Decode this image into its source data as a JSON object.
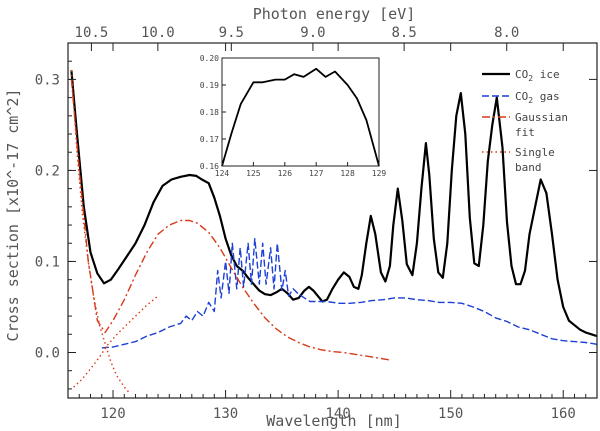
{
  "chart_data": {
    "type": "line",
    "xlabel": "Wavelength [nm]",
    "x2label": "Photon energy [eV]",
    "ylabel": "Cross section [x10^-17 cm^2]",
    "xlim": [
      116,
      163
    ],
    "ylim": [
      -0.05,
      0.34
    ],
    "x_ticks": [
      120,
      130,
      140,
      150,
      160
    ],
    "y_ticks": [
      0.0,
      0.1,
      0.2,
      0.3
    ],
    "x2_ticks": [
      10.5,
      10.0,
      9.5,
      9.0,
      8.5,
      8.0
    ],
    "legend_position": "top-right",
    "legend": [
      "CO2 ice",
      "CO2 gas",
      "Gaussian fit",
      "Single band"
    ],
    "series": [
      {
        "name": "CO2 ice",
        "color": "#000000",
        "style": "solid",
        "x": [
          116.3,
          116.8,
          117.4,
          118.0,
          118.6,
          119.2,
          119.8,
          120.5,
          121.2,
          122.0,
          122.8,
          123.6,
          124.4,
          125.2,
          126.0,
          126.8,
          127.4,
          127.9,
          128.5,
          129.0,
          129.5,
          130.0,
          130.5,
          131.0,
          131.5,
          132.0,
          132.5,
          133.0,
          133.5,
          134.0,
          134.5,
          135.0,
          135.5,
          136.0,
          136.5,
          137.0,
          137.4,
          137.8,
          138.2,
          138.6,
          139.0,
          139.5,
          140.0,
          140.5,
          141.0,
          141.4,
          141.8,
          142.1,
          142.5,
          142.9,
          143.3,
          143.8,
          144.2,
          144.6,
          144.9,
          145.3,
          145.7,
          146.1,
          146.6,
          147.0,
          147.4,
          147.8,
          148.1,
          148.5,
          148.9,
          149.3,
          149.7,
          150.1,
          150.5,
          150.9,
          151.3,
          151.7,
          152.1,
          152.5,
          152.9,
          153.3,
          153.7,
          154.1,
          154.6,
          155.0,
          155.4,
          155.8,
          156.2,
          156.6,
          157.0,
          157.5,
          158.0,
          158.5,
          159.0,
          159.5,
          160.0,
          160.5,
          161.0,
          161.5,
          162.0,
          162.5,
          163.0
        ],
        "y": [
          0.31,
          0.24,
          0.16,
          0.11,
          0.087,
          0.076,
          0.08,
          0.092,
          0.105,
          0.12,
          0.14,
          0.165,
          0.183,
          0.19,
          0.193,
          0.195,
          0.194,
          0.19,
          0.186,
          0.17,
          0.15,
          0.125,
          0.107,
          0.095,
          0.09,
          0.082,
          0.075,
          0.068,
          0.064,
          0.063,
          0.066,
          0.07,
          0.065,
          0.058,
          0.06,
          0.068,
          0.072,
          0.068,
          0.062,
          0.056,
          0.058,
          0.07,
          0.08,
          0.088,
          0.083,
          0.072,
          0.07,
          0.085,
          0.12,
          0.15,
          0.13,
          0.088,
          0.078,
          0.095,
          0.14,
          0.18,
          0.145,
          0.097,
          0.085,
          0.12,
          0.18,
          0.23,
          0.195,
          0.125,
          0.088,
          0.082,
          0.12,
          0.2,
          0.26,
          0.285,
          0.24,
          0.148,
          0.098,
          0.095,
          0.14,
          0.21,
          0.25,
          0.28,
          0.225,
          0.143,
          0.095,
          0.075,
          0.075,
          0.09,
          0.13,
          0.16,
          0.19,
          0.175,
          0.13,
          0.08,
          0.05,
          0.035,
          0.03,
          0.025,
          0.022,
          0.02,
          0.018
        ]
      },
      {
        "name": "CO2 gas",
        "color": "#1c3fd6",
        "style": "dashed",
        "x": [
          119.0,
          120.0,
          121.0,
          122.0,
          123.0,
          124.0,
          125.0,
          126.0,
          126.5,
          127.0,
          127.5,
          128.0,
          128.5,
          129.0,
          129.3,
          129.6,
          130.0,
          130.3,
          130.6,
          131.0,
          131.3,
          131.6,
          132.0,
          132.3,
          132.6,
          133.0,
          133.3,
          133.6,
          134.0,
          134.3,
          134.6,
          135.0,
          135.3,
          135.6,
          136.0,
          136.5,
          137.0,
          137.5,
          138.0,
          139.0,
          140.0,
          141.0,
          142.0,
          143.0,
          144.0,
          145.0,
          146.0,
          147.0,
          148.0,
          149.0,
          150.0,
          151.0,
          152.0,
          153.0,
          154.0,
          155.0,
          156.0,
          157.0,
          158.0,
          159.0,
          160.0,
          161.0,
          162.0,
          163.0
        ],
        "y": [
          0.005,
          0.006,
          0.009,
          0.012,
          0.018,
          0.022,
          0.028,
          0.032,
          0.04,
          0.035,
          0.045,
          0.04,
          0.055,
          0.045,
          0.09,
          0.06,
          0.1,
          0.065,
          0.12,
          0.07,
          0.115,
          0.072,
          0.12,
          0.075,
          0.125,
          0.075,
          0.12,
          0.075,
          0.115,
          0.07,
          0.12,
          0.068,
          0.09,
          0.062,
          0.07,
          0.064,
          0.06,
          0.056,
          0.056,
          0.056,
          0.054,
          0.054,
          0.055,
          0.057,
          0.058,
          0.06,
          0.06,
          0.058,
          0.057,
          0.055,
          0.055,
          0.054,
          0.05,
          0.045,
          0.038,
          0.034,
          0.028,
          0.025,
          0.02,
          0.015,
          0.013,
          0.012,
          0.011,
          0.009
        ]
      },
      {
        "name": "Gaussian fit",
        "color": "#d83a1a",
        "style": "dash-dot",
        "x": [
          116.3,
          117.0,
          117.8,
          118.6,
          119.3,
          120.0,
          121.0,
          122.0,
          123.0,
          124.0,
          125.0,
          126.0,
          126.8,
          127.5,
          128.5,
          129.5,
          130.5,
          131.5,
          132.5,
          133.5,
          134.5,
          135.5,
          136.5,
          137.5,
          138.5,
          139.5,
          140.5,
          141.5,
          142.5,
          143.5,
          144.5
        ],
        "y": [
          0.3,
          0.2,
          0.1,
          0.035,
          0.022,
          0.035,
          0.058,
          0.085,
          0.11,
          0.13,
          0.14,
          0.145,
          0.145,
          0.142,
          0.132,
          0.115,
          0.093,
          0.072,
          0.054,
          0.038,
          0.026,
          0.017,
          0.011,
          0.006,
          0.003,
          0.001,
          0.0,
          -0.002,
          -0.004,
          -0.006,
          -0.008
        ]
      },
      {
        "name": "Single band",
        "color": "#d83a1a",
        "style": "dotted",
        "x": [
          116.3,
          116.8,
          117.3,
          117.8,
          118.3,
          118.8,
          119.3,
          119.8,
          120.3,
          121.0,
          121.5,
          116.5,
          117.2,
          118.0,
          118.8,
          119.5,
          120.2,
          121.0,
          122.0,
          123.0,
          124.0
        ],
        "y": [
          0.31,
          0.22,
          0.15,
          0.1,
          0.06,
          0.03,
          0.01,
          -0.01,
          -0.025,
          -0.038,
          -0.045,
          -0.038,
          -0.03,
          -0.018,
          -0.005,
          0.008,
          0.018,
          0.028,
          0.04,
          0.052,
          0.062
        ]
      }
    ],
    "inset": {
      "xlim": [
        124,
        129
      ],
      "ylim": [
        0.16,
        0.2
      ],
      "x_ticks": [
        124,
        125,
        126,
        127,
        128,
        129
      ],
      "y_ticks": [
        0.16,
        0.17,
        0.18,
        0.19,
        0.2
      ],
      "x": [
        124.0,
        124.3,
        124.6,
        125.0,
        125.3,
        125.7,
        126.0,
        126.3,
        126.6,
        127.0,
        127.3,
        127.6,
        128.0,
        128.3,
        128.6,
        129.0
      ],
      "y": [
        0.16,
        0.172,
        0.183,
        0.191,
        0.191,
        0.192,
        0.192,
        0.194,
        0.193,
        0.196,
        0.193,
        0.195,
        0.19,
        0.185,
        0.177,
        0.16
      ]
    }
  }
}
